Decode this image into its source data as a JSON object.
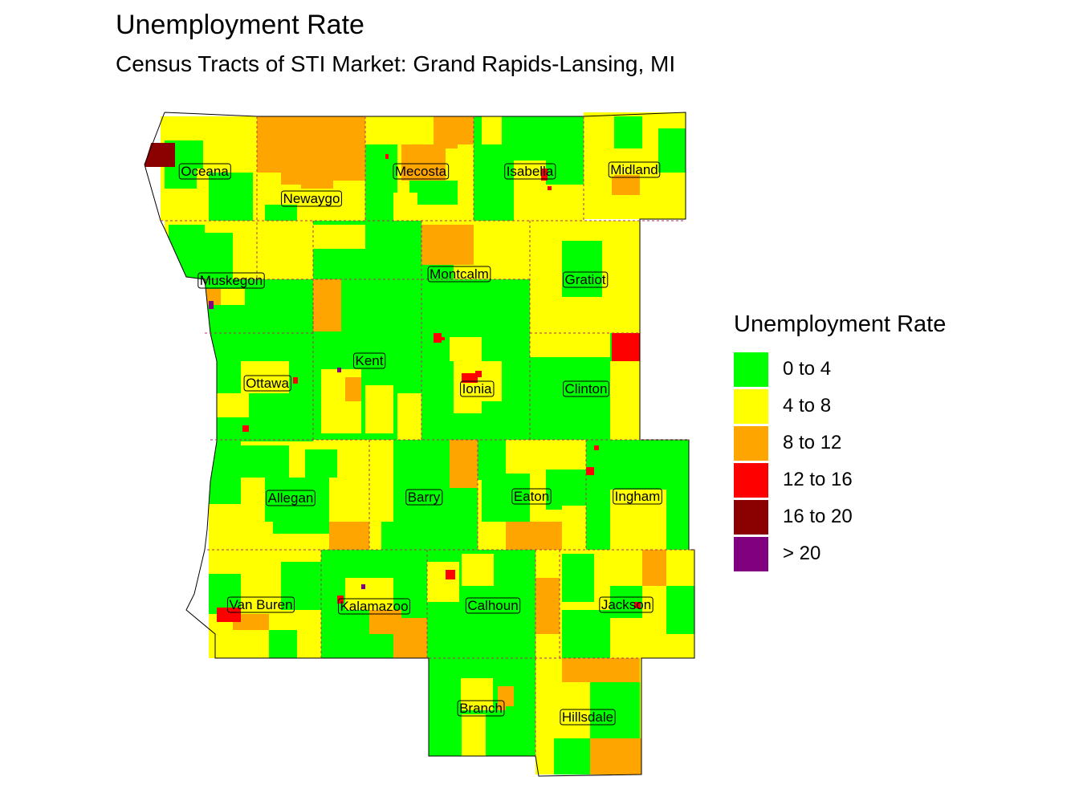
{
  "title": "Unemployment Rate",
  "subtitle": "Census Tracts of STI Market: Grand Rapids-Lansing, MI",
  "legend": {
    "title": "Unemployment Rate",
    "items": [
      {
        "label": "0 to 4",
        "color": "#00ff00"
      },
      {
        "label": "4 to 8",
        "color": "#ffff00"
      },
      {
        "label": "8 to 12",
        "color": "#ffa500"
      },
      {
        "label": "12 to 16",
        "color": "#ff0000"
      },
      {
        "label": "16 to 20",
        "color": "#8b0000"
      },
      {
        "label": "> 20",
        "color": "#800080"
      }
    ]
  },
  "counties": [
    {
      "name": "Oceana"
    },
    {
      "name": "Newaygo"
    },
    {
      "name": "Mecosta"
    },
    {
      "name": "Isabella"
    },
    {
      "name": "Midland"
    },
    {
      "name": "Muskegon"
    },
    {
      "name": "Montcalm"
    },
    {
      "name": "Gratiot"
    },
    {
      "name": "Kent"
    },
    {
      "name": "Ottawa"
    },
    {
      "name": "Ionia"
    },
    {
      "name": "Clinton"
    },
    {
      "name": "Allegan"
    },
    {
      "name": "Barry"
    },
    {
      "name": "Eaton"
    },
    {
      "name": "Ingham"
    },
    {
      "name": "Van Buren"
    },
    {
      "name": "Kalamazoo"
    },
    {
      "name": "Calhoun"
    },
    {
      "name": "Jackson"
    },
    {
      "name": "Branch"
    },
    {
      "name": "Hillsdale"
    }
  ]
}
